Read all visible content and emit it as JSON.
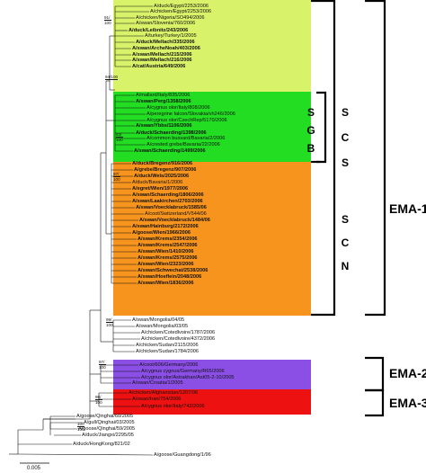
{
  "bands": [
    {
      "color": "#d8f26a"
    },
    {
      "color": "#22dd22"
    },
    {
      "color": "#f7941d"
    },
    {
      "color": "#8b4fe6"
    },
    {
      "color": "#ee1111"
    }
  ],
  "leaves": [
    {
      "label": "A/duck/Egypt/2253/2006",
      "bold": false
    },
    {
      "label": "A/chicken/Egypt/2253/2006",
      "bold": false
    },
    {
      "label": "A/chicken/Nigeria/SO494/2006",
      "bold": false
    },
    {
      "label": "A/swan/Slovenia/760/2006",
      "bold": false
    },
    {
      "label": "A/duck/Leibnitz/243/2006",
      "bold": true
    },
    {
      "label": "A/turkey/Turkey/1/2005",
      "bold": false
    },
    {
      "label": "A/duck/Mellach/335/2006",
      "bold": true
    },
    {
      "label": "A/swan/ArcheNoah/403/2006",
      "bold": true
    },
    {
      "label": "A/swan/Mellach/215/2006",
      "bold": true
    },
    {
      "label": "A/swan/Mellach/216/2006",
      "bold": true
    },
    {
      "label": "A/cat/Austria/649/2006",
      "bold": true
    },
    {
      "label": "A/mallard/Italy/835/2006",
      "bold": false
    },
    {
      "label": "A/swan/Perg/1358/2006",
      "bold": true
    },
    {
      "label": "A/cygnus olor/Italy/808/2006",
      "bold": false
    },
    {
      "label": "A/peregrine falcon/Slovakia/vh246/2006",
      "bold": false
    },
    {
      "label": "A/cygnus olor/CzechRep/5170/2006",
      "bold": false
    },
    {
      "label": "A/swan/Ybbs/1106/2006",
      "bold": true
    },
    {
      "label": "A/duck/Schaerding/1398/2006",
      "bold": true
    },
    {
      "label": "A/common bussard/Bavaria/2/2006",
      "bold": false
    },
    {
      "label": "A/crested grebe/Bavaria/22/2006",
      "bold": false
    },
    {
      "label": "A/swan/Schaerding/1499/2006",
      "bold": true
    },
    {
      "label": "A/duck/Bregenz/916/2006",
      "bold": true
    },
    {
      "label": "A/grebe/Bregenz/907/2006",
      "bold": true
    },
    {
      "label": "A/duck/Wels/2025/2006",
      "bold": true
    },
    {
      "label": "A/duck/Bavaria/1/2006",
      "bold": false
    },
    {
      "label": "A/egret/Wien/1977/2006",
      "bold": true
    },
    {
      "label": "A/swan/Schaerding/1806/2006",
      "bold": true
    },
    {
      "label": "A/swan/Laakirchen/2703/2006",
      "bold": true
    },
    {
      "label": "A/swan/Voecklabruck/1585/06",
      "bold": true
    },
    {
      "label": "A/coot/Switzerland/V544/06",
      "bold": false
    },
    {
      "label": "A/swan/Voecklabruck/1484/06",
      "bold": true
    },
    {
      "label": "A/swan/Hainburg/2172/2006",
      "bold": true
    },
    {
      "label": "A/goose/Wien/1966/2006",
      "bold": true
    },
    {
      "label": "A/swan/Krems/2354/2006",
      "bold": true
    },
    {
      "label": "A/swan/Krems/2547/2006",
      "bold": true
    },
    {
      "label": "A/swan/Wien/1410/2006",
      "bold": true
    },
    {
      "label": "A/swan/Krems/2575/2006",
      "bold": true
    },
    {
      "label": "A/swan/Wien/2323/2006",
      "bold": true
    },
    {
      "label": "A/swan/Schwechat/2538/2006",
      "bold": true
    },
    {
      "label": "A/swan/Hoeflein/2048/2006",
      "bold": true
    },
    {
      "label": "A/swan/Wien/1836/2006",
      "bold": true
    },
    {
      "label": "A/swan/Mongolia/04/05",
      "bold": false
    },
    {
      "label": "A/swan/Mongolia/03/05",
      "bold": false
    },
    {
      "label": "A/chicken/Cotedlvoire/1787/2006",
      "bold": false
    },
    {
      "label": "A/chicken/Cotedlvoire/4372/2006",
      "bold": false
    },
    {
      "label": "A/chicken/Sudan/2115/2006",
      "bold": false
    },
    {
      "label": "A/chicken/Sudan/1784/2006",
      "bold": false
    },
    {
      "label": "A/coot/606/Germany/2006",
      "bold": false
    },
    {
      "label": "A/cygnus cygnus/Germany/R65/2006",
      "bold": false
    },
    {
      "label": "A/cygnus olor/Astrakhan/Ast05-2-10/2005",
      "bold": false
    },
    {
      "label": "A/swan/Croatia/1/2005",
      "bold": false
    },
    {
      "label": "A/chicken/Afghanistan/1207/06",
      "bold": false
    },
    {
      "label": "A/swan/Iran/754/2006",
      "bold": false
    },
    {
      "label": "A/cygnus olor/Italy/742/2006",
      "bold": false
    },
    {
      "label": "A/goose/Qinghai/60/2005",
      "bold": false
    },
    {
      "label": "A/gull/Qinghai/03/2005",
      "bold": false
    },
    {
      "label": "A/goose/Qinghai/59/2005",
      "bold": false
    },
    {
      "label": "A/duck/Jiangxi/2295/05",
      "bold": false
    },
    {
      "label": "A/duck/HongKong/821/02",
      "bold": false
    },
    {
      "label": "A/goose/Guangdong/1/96",
      "bold": false
    }
  ],
  "bootstrap": [
    {
      "top": "91/",
      "bottom": "100"
    },
    {
      "top": "94/100",
      "bottom": ""
    },
    {
      "top": "83/",
      "bottom": "100"
    },
    {
      "top": "97/",
      "bottom": "100"
    },
    {
      "top": "99/",
      "bottom": "100"
    },
    {
      "top": "97/",
      "bottom": "100"
    },
    {
      "top": "98/",
      "bottom": "100"
    },
    {
      "top": "100",
      "bottom": "100"
    }
  ],
  "vertical_labels": {
    "scs": [
      "S",
      "C",
      "S"
    ],
    "sgb": [
      "S",
      "G",
      "B"
    ],
    "scn": [
      "S",
      "C",
      "N"
    ]
  },
  "groups": [
    "EMA-1",
    "EMA-2",
    "EMA-3"
  ],
  "scale_label": "0.005"
}
